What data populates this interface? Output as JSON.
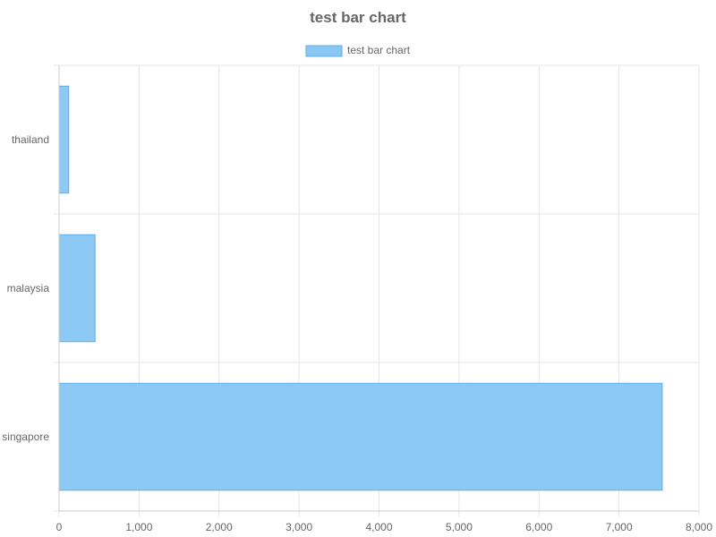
{
  "chart_data": {
    "type": "bar",
    "orientation": "horizontal",
    "title": "test bar chart",
    "categories": [
      "thailand",
      "malaysia",
      "singapore"
    ],
    "series": [
      {
        "name": "test bar chart",
        "values": [
          120,
          450,
          7540
        ]
      }
    ],
    "xlim": [
      0,
      8000
    ],
    "x_ticks": [
      "0",
      "1,000",
      "2,000",
      "3,000",
      "4,000",
      "5,000",
      "6,000",
      "7,000",
      "8,000"
    ],
    "grid": true,
    "legend_position": "top-center",
    "colors": {
      "bar_fill": "#8ac8f4",
      "bar_stroke": "#5aaee6",
      "grid": "#e5e5e5",
      "axis": "#cccccc",
      "text": "#666666"
    }
  }
}
